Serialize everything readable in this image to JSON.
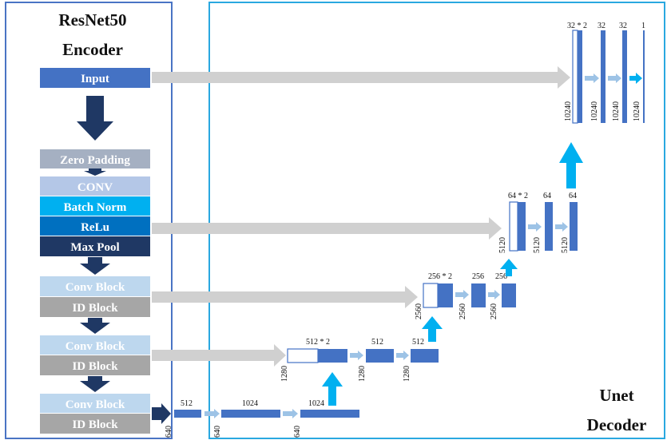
{
  "encoder": {
    "title_line1": "ResNet50",
    "title_line2": "Encoder",
    "blocks": {
      "input": "Input",
      "zero_padding": "Zero Padding",
      "conv": "CONV",
      "batch_norm": "Batch Norm",
      "relu": "ReLu",
      "max_pool": "Max Pool",
      "conv_block": "Conv Block",
      "id_block": "ID Block"
    }
  },
  "decoder": {
    "title_line1": "Unet",
    "title_line2": "Decoder",
    "labels": {
      "l640a": "640",
      "l512a": "512",
      "l640b": "640",
      "l1024a": "1024",
      "l640c": "640",
      "l1024b": "1024",
      "l1280a": "1280",
      "l512x2": "512 * 2",
      "l1280b": "1280",
      "l512b": "512",
      "l1280c": "1280",
      "l512c": "512",
      "l2560a": "2560",
      "l256x2": "256 * 2",
      "l2560b": "2560",
      "l256a": "256",
      "l2560c": "2560",
      "l256b": "256",
      "l5120a": "5120",
      "l64x2": "64 * 2",
      "l5120b": "5120",
      "l64a": "64",
      "l5120c": "5120",
      "l64b": "64",
      "l10240a": "10240",
      "l32x2": "32 * 2",
      "l10240b": "10240",
      "l32a": "32",
      "l10240c": "10240",
      "l32b": "32",
      "l10240d": "10240",
      "l1": "1"
    }
  },
  "colors": {
    "frame_blue": "#4a74c4",
    "frame_cyan": "#2aa8e0",
    "block_blue": "#4472c4",
    "dark_navy": "#1f3864",
    "zero_padding": "#a5b0c2",
    "conv": "#b4c7e7",
    "batch_norm": "#00b0f0",
    "relu": "#0070c0",
    "conv_block": "#bdd7ee",
    "id_block": "#a6a6a6",
    "skip_gray": "#d0d0d0",
    "light_arrow": "#9dc3e6",
    "up_arrow": "#00b0f0"
  }
}
